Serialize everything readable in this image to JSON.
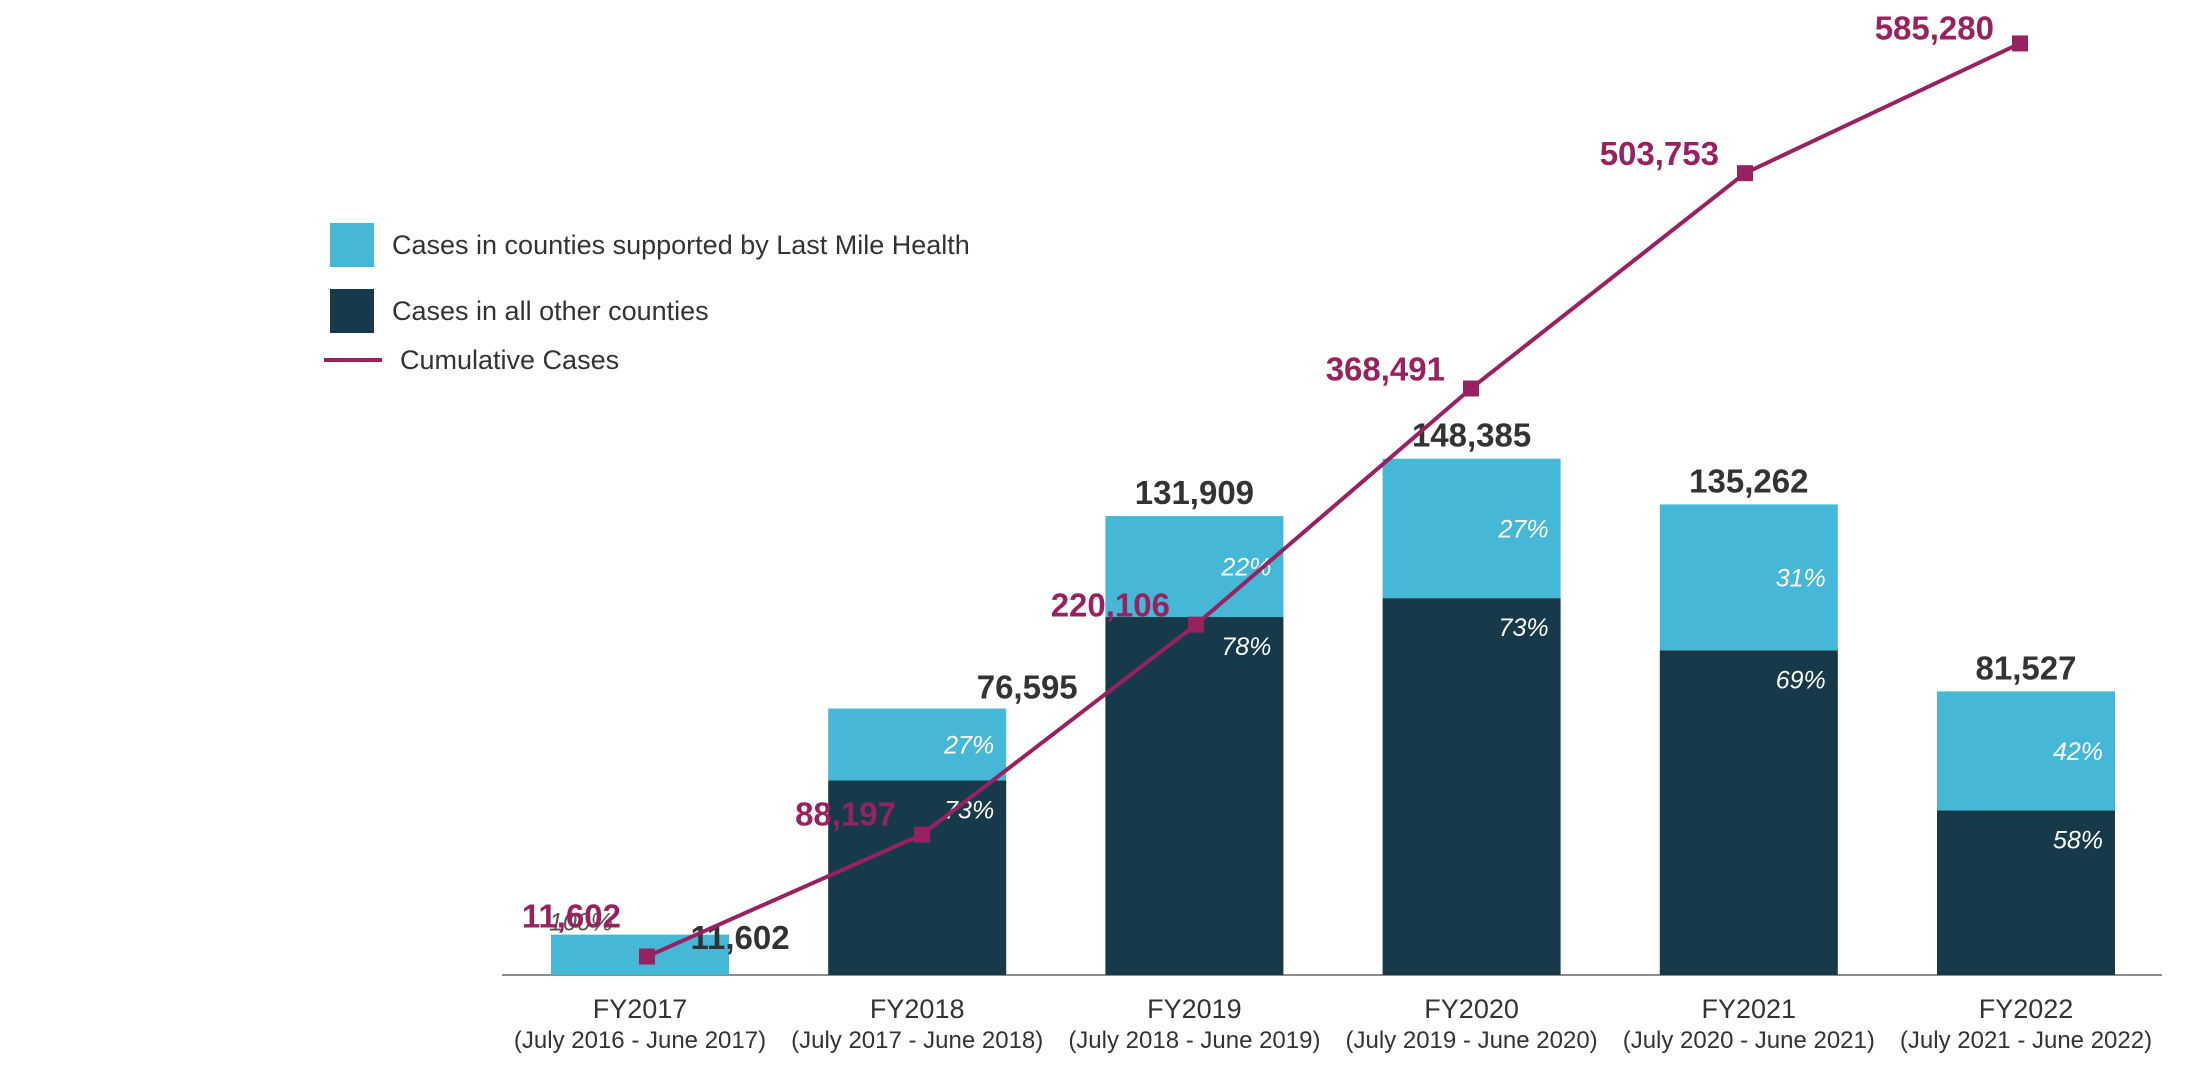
{
  "colors": {
    "lmh": "#45B8D8",
    "other": "#173A4A",
    "cumulative": "#98215F",
    "text_dark": "#333333",
    "axis": "#8c8c8c"
  },
  "legend": {
    "items": [
      {
        "label": "Cases in counties supported by Last Mile Health",
        "color": "#45B8D8",
        "kind": "swatch"
      },
      {
        "label": "Cases in all other counties",
        "color": "#173A4A",
        "kind": "swatch"
      },
      {
        "label": "Cumulative Cases",
        "color": "#98215F",
        "kind": "line"
      }
    ]
  },
  "chart_data": {
    "type": "bar",
    "stacked": true,
    "categories": [
      "FY2017",
      "FY2018",
      "FY2019",
      "FY2020",
      "FY2021",
      "FY2022"
    ],
    "category_sublabels": [
      "(July 2016 - June 2017)",
      "(July 2017 - June 2018)",
      "(July 2018 - June 2019)",
      "(July 2019 - June 2020)",
      "(July 2020 - June 2021)",
      "(July 2021 - June 2022)"
    ],
    "totals": [
      11602,
      76595,
      131909,
      148385,
      135262,
      81527
    ],
    "total_labels": [
      "11,602",
      "76,595",
      "131,909",
      "148,385",
      "135,262",
      "81,527"
    ],
    "series": [
      {
        "name": "Cases in all other counties",
        "percent": [
          0,
          73,
          78,
          73,
          69,
          58
        ],
        "percent_labels": [
          "",
          "73%",
          "78%",
          "73%",
          "69%",
          "58%"
        ]
      },
      {
        "name": "Cases in counties supported by Last Mile Health",
        "percent": [
          100,
          27,
          22,
          27,
          31,
          42
        ],
        "percent_labels": [
          "100%",
          "27%",
          "22%",
          "27%",
          "31%",
          "42%"
        ]
      }
    ],
    "line": {
      "name": "Cumulative Cases",
      "values": [
        11602,
        88197,
        220106,
        368491,
        503753,
        585280
      ],
      "labels": [
        "11,602",
        "88,197",
        "220,106",
        "368,491",
        "503,753",
        "585,280"
      ]
    },
    "xlabel": "",
    "ylabel": "",
    "bar_ylim": [
      0,
      240000
    ],
    "line_ylim": [
      0,
      600000
    ],
    "legend_position": "top-left",
    "grid": false
  }
}
